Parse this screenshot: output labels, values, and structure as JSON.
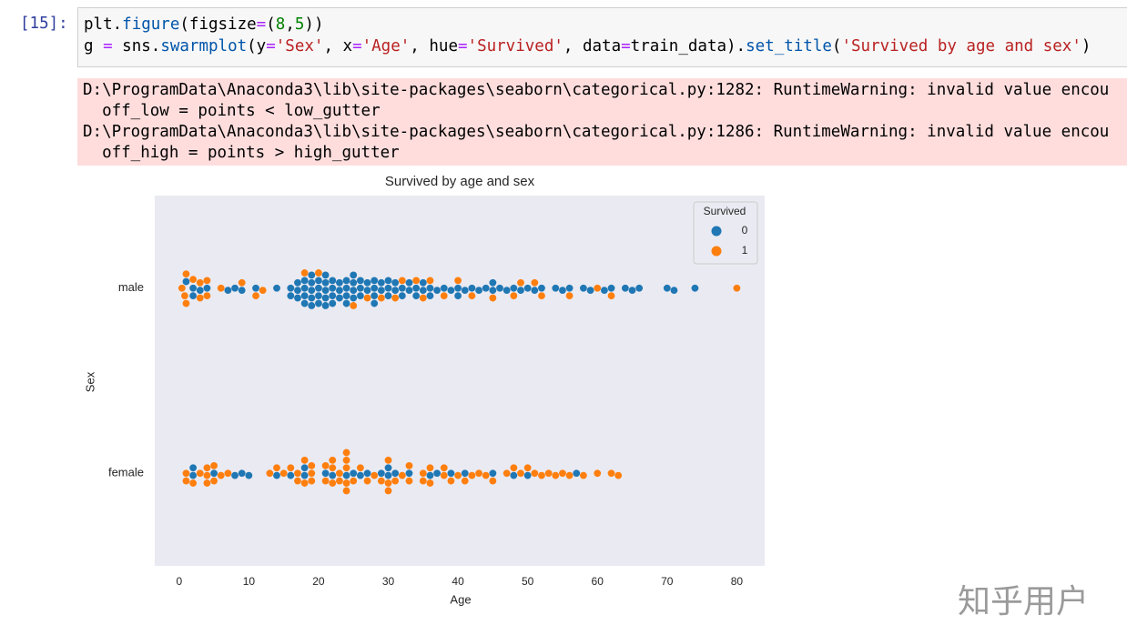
{
  "prompt": "[15]:",
  "code": {
    "lines": [
      [
        {
          "text": "plt.",
          "color": "#000000"
        },
        {
          "text": "figure",
          "color": "#0055aa"
        },
        {
          "text": "(figsize",
          "color": "#000000"
        },
        {
          "text": "=",
          "color": "#aa22ff"
        },
        {
          "text": "(",
          "color": "#000000"
        },
        {
          "text": "8",
          "color": "#008000"
        },
        {
          "text": ",",
          "color": "#000000"
        },
        {
          "text": "5",
          "color": "#008000"
        },
        {
          "text": "))",
          "color": "#000000"
        }
      ],
      [
        {
          "text": "g ",
          "color": "#000000"
        },
        {
          "text": "=",
          "color": "#aa22ff"
        },
        {
          "text": " sns.",
          "color": "#000000"
        },
        {
          "text": "swarmplot",
          "color": "#0055aa"
        },
        {
          "text": "(y",
          "color": "#000000"
        },
        {
          "text": "=",
          "color": "#aa22ff"
        },
        {
          "text": "'Sex'",
          "color": "#ba2121"
        },
        {
          "text": ", x",
          "color": "#000000"
        },
        {
          "text": "=",
          "color": "#aa22ff"
        },
        {
          "text": "'Age'",
          "color": "#ba2121"
        },
        {
          "text": ", hue",
          "color": "#000000"
        },
        {
          "text": "=",
          "color": "#aa22ff"
        },
        {
          "text": "'Survived'",
          "color": "#ba2121"
        },
        {
          "text": ", data",
          "color": "#000000"
        },
        {
          "text": "=",
          "color": "#aa22ff"
        },
        {
          "text": "train_data).",
          "color": "#000000"
        },
        {
          "text": "set_title",
          "color": "#0055aa"
        },
        {
          "text": "(",
          "color": "#000000"
        },
        {
          "text": "'Survived by age and sex'",
          "color": "#ba2121"
        },
        {
          "text": ")",
          "color": "#000000"
        }
      ]
    ]
  },
  "warnings": [
    "D:\\ProgramData\\Anaconda3\\lib\\site-packages\\seaborn\\categorical.py:1282: RuntimeWarning: invalid value encou",
    "  off_low = points < low_gutter",
    "D:\\ProgramData\\Anaconda3\\lib\\site-packages\\seaborn\\categorical.py:1286: RuntimeWarning: invalid value encou",
    "  off_high = points > high_gutter"
  ],
  "chart_data": {
    "type": "swarm",
    "title": "Survived by age and sex",
    "x_label": "Age",
    "y_label": "Sex",
    "categories": [
      "male",
      "female"
    ],
    "xlim": [
      -3.5,
      84
    ],
    "xticks": [
      0,
      10,
      20,
      30,
      40,
      50,
      60,
      70,
      80
    ],
    "grid": false,
    "legend_title": "Survived",
    "legend_position": "upper right",
    "series": [
      {
        "name": "0",
        "color": "#1f77b4",
        "values": [
          [
            1,
            2,
            2,
            3,
            4,
            7,
            8,
            9,
            11,
            14,
            16,
            16,
            17,
            17,
            17,
            18,
            18,
            18,
            18,
            19,
            19,
            19,
            19,
            19,
            20,
            20,
            20,
            20,
            21,
            21,
            21,
            21,
            21,
            22,
            22,
            22,
            22,
            23,
            23,
            23,
            24,
            24,
            24,
            24,
            25,
            25,
            25,
            25,
            26,
            26,
            26,
            27,
            27,
            28,
            28,
            28,
            28,
            29,
            29,
            30,
            30,
            30,
            31,
            31,
            32,
            32,
            33,
            33,
            34,
            34,
            35,
            35,
            36,
            36,
            37,
            38,
            39,
            40,
            40,
            41,
            42,
            43,
            44,
            45,
            45,
            46,
            47,
            48,
            49,
            50,
            51,
            52,
            54,
            55,
            56,
            58,
            59,
            61,
            62,
            64,
            65,
            66,
            70,
            71,
            74
          ],
          [
            2,
            2,
            5,
            8,
            9,
            10,
            14,
            16,
            18,
            18,
            21,
            22,
            24,
            25,
            26,
            27,
            29,
            30,
            30,
            31,
            33,
            36,
            37,
            39,
            41,
            45,
            48,
            50,
            57
          ]
        ]
      },
      {
        "name": "1",
        "color": "#ff7f0e",
        "values": [
          [
            0.4,
            0.8,
            1,
            1,
            2,
            3,
            3,
            4,
            4,
            6,
            9,
            11,
            12,
            18,
            20,
            25,
            27,
            29,
            31,
            32,
            34,
            35,
            36,
            38,
            40,
            42,
            45,
            48,
            49,
            51,
            52,
            56,
            60,
            62,
            80
          ],
          [
            1,
            1,
            2,
            3,
            4,
            4,
            4,
            5,
            5,
            6,
            7,
            13,
            14,
            15,
            16,
            17,
            17,
            18,
            18,
            19,
            19,
            19,
            21,
            21,
            22,
            22,
            22,
            23,
            23,
            24,
            24,
            24,
            24,
            24,
            25,
            26,
            27,
            28,
            29,
            30,
            30,
            30,
            31,
            32,
            33,
            33,
            35,
            35,
            36,
            36,
            38,
            38,
            39,
            40,
            41,
            42,
            43,
            44,
            45,
            47,
            48,
            49,
            50,
            51,
            52,
            53,
            54,
            55,
            56,
            58,
            60,
            62,
            63
          ]
        ]
      }
    ]
  },
  "watermark": "知乎用户"
}
